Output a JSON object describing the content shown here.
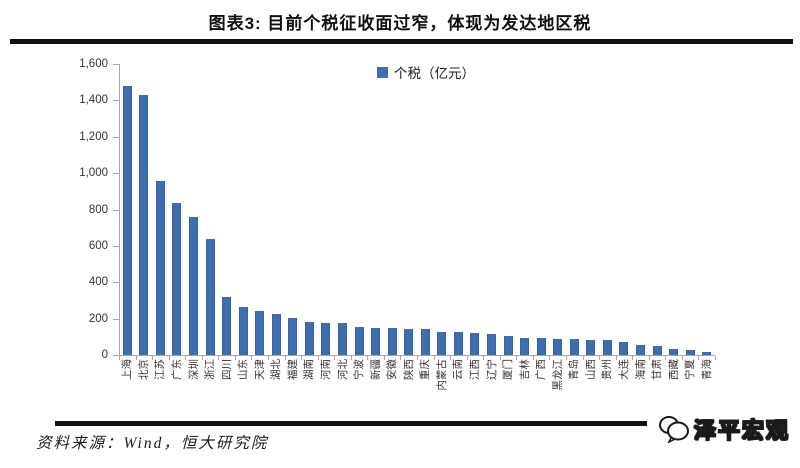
{
  "page": {
    "title": "图表3: 目前个税征收面过窄，体现为发达地区税",
    "source_note": "资料来源：Wind，恒大研究院",
    "watermark": "泽平宏观"
  },
  "chart_data": {
    "type": "bar",
    "title": "图表3: 目前个税征收面过窄，体现为发达地区税",
    "categories": [
      "上海",
      "北京",
      "江苏",
      "广东",
      "深圳",
      "浙江",
      "四川",
      "山东",
      "天津",
      "湖北",
      "福建",
      "湖南",
      "河南",
      "河北",
      "宁波",
      "新疆",
      "安徽",
      "陕西",
      "重庆",
      "内蒙古",
      "云南",
      "江西",
      "辽宁",
      "厦门",
      "吉林",
      "广西",
      "黑龙江",
      "青岛",
      "山西",
      "贵州",
      "大连",
      "海南",
      "甘肃",
      "西藏",
      "宁夏",
      "青海"
    ],
    "series": [
      {
        "name": "个税（亿元）",
        "values": [
          1480,
          1430,
          955,
          835,
          760,
          640,
          320,
          265,
          240,
          228,
          205,
          183,
          178,
          176,
          156,
          148,
          146,
          145,
          143,
          128,
          126,
          122,
          115,
          107,
          96,
          93,
          89,
          86,
          84,
          82,
          73,
          56,
          52,
          35,
          25,
          15
        ]
      }
    ],
    "xlabel": "",
    "ylabel": "",
    "ylim": [
      0,
      1600
    ],
    "yticks": [
      0,
      200,
      400,
      600,
      800,
      1000,
      1200,
      1400,
      1600
    ],
    "ytick_labels": [
      "0",
      "200",
      "400",
      "600",
      "800",
      "1,000",
      "1,200",
      "1,400",
      "1,600"
    ],
    "grid": false,
    "legend_position": "top-center",
    "bar_color": "#3f6eae"
  }
}
